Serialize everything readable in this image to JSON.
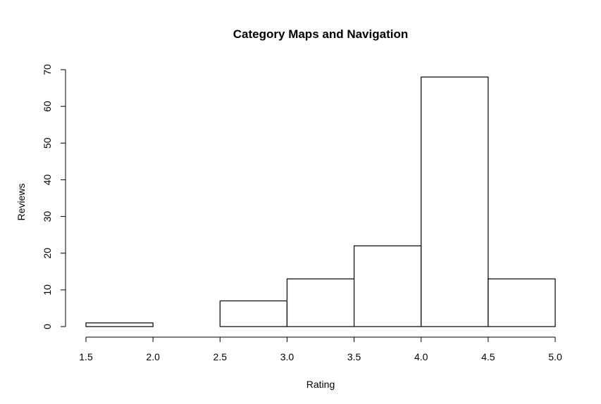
{
  "chart_data": {
    "type": "bar",
    "title": "Category Maps and Navigation",
    "xlabel": "Rating",
    "ylabel": "Reviews",
    "bins": [
      {
        "from": 1.5,
        "to": 2.0,
        "value": 1
      },
      {
        "from": 2.0,
        "to": 2.5,
        "value": 0
      },
      {
        "from": 2.5,
        "to": 3.0,
        "value": 7
      },
      {
        "from": 3.0,
        "to": 3.5,
        "value": 13
      },
      {
        "from": 3.5,
        "to": 4.0,
        "value": 22
      },
      {
        "from": 4.0,
        "to": 4.5,
        "value": 68
      },
      {
        "from": 4.5,
        "to": 5.0,
        "value": 13
      }
    ],
    "xlim": [
      1.5,
      5.0
    ],
    "ylim": [
      0,
      70
    ],
    "xticks": [
      "1.5",
      "2.0",
      "2.5",
      "3.0",
      "3.5",
      "4.0",
      "4.5",
      "5.0"
    ],
    "yticks": [
      "0",
      "10",
      "20",
      "30",
      "40",
      "50",
      "60",
      "70"
    ],
    "grid": false,
    "colors": {
      "bar_fill": "#ffffff",
      "bar_stroke": "#000000"
    }
  }
}
